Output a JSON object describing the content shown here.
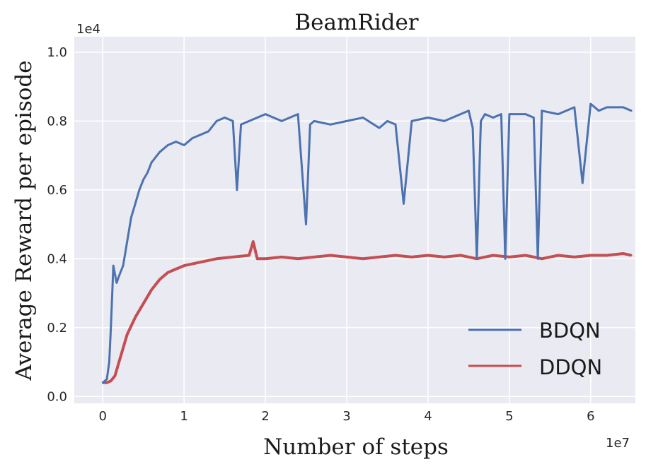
{
  "chart_data": {
    "type": "line",
    "title": "BeamRider",
    "xlabel": "Number of steps",
    "ylabel": "Average Reward per episode",
    "x_offset_label": "1e7",
    "y_offset_label": "1e4",
    "xlim": [
      -0.35,
      6.55
    ],
    "ylim": [
      -0.02,
      1.045
    ],
    "x_ticks": [
      0,
      1,
      2,
      3,
      4,
      5,
      6
    ],
    "x_tick_labels": [
      "0",
      "1",
      "2",
      "3",
      "4",
      "5",
      "6"
    ],
    "y_ticks": [
      0.0,
      0.2,
      0.4,
      0.6,
      0.8,
      1.0
    ],
    "y_tick_labels": [
      "0.0",
      "0.2",
      "0.4",
      "0.6",
      "0.8",
      "1.0"
    ],
    "grid": true,
    "legend_position": "lower-right",
    "background_color": "#eaeaf2",
    "series": [
      {
        "name": "BDQN",
        "color": "#4c72b0",
        "x": [
          0.0,
          0.05,
          0.08,
          0.1,
          0.13,
          0.17,
          0.2,
          0.25,
          0.3,
          0.35,
          0.4,
          0.45,
          0.5,
          0.55,
          0.6,
          0.7,
          0.8,
          0.9,
          1.0,
          1.1,
          1.2,
          1.3,
          1.4,
          1.5,
          1.6,
          1.65,
          1.7,
          1.8,
          1.9,
          2.0,
          2.2,
          2.4,
          2.5,
          2.55,
          2.6,
          2.8,
          3.0,
          3.2,
          3.4,
          3.5,
          3.6,
          3.7,
          3.8,
          4.0,
          4.2,
          4.4,
          4.5,
          4.55,
          4.6,
          4.65,
          4.7,
          4.8,
          4.9,
          4.95,
          5.0,
          5.2,
          5.3,
          5.35,
          5.4,
          5.6,
          5.8,
          5.9,
          6.0,
          6.1,
          6.2,
          6.3,
          6.4,
          6.5
        ],
        "y": [
          0.04,
          0.05,
          0.1,
          0.2,
          0.38,
          0.33,
          0.35,
          0.38,
          0.45,
          0.52,
          0.56,
          0.6,
          0.63,
          0.65,
          0.68,
          0.71,
          0.73,
          0.74,
          0.73,
          0.75,
          0.76,
          0.77,
          0.8,
          0.81,
          0.8,
          0.6,
          0.79,
          0.8,
          0.81,
          0.82,
          0.8,
          0.82,
          0.5,
          0.79,
          0.8,
          0.79,
          0.8,
          0.81,
          0.78,
          0.8,
          0.79,
          0.56,
          0.8,
          0.81,
          0.8,
          0.82,
          0.83,
          0.78,
          0.4,
          0.8,
          0.82,
          0.81,
          0.82,
          0.4,
          0.82,
          0.82,
          0.81,
          0.4,
          0.83,
          0.82,
          0.84,
          0.62,
          0.85,
          0.83,
          0.84,
          0.84,
          0.84,
          0.83
        ]
      },
      {
        "name": "DDQN",
        "color": "#c44e52",
        "x": [
          0.0,
          0.05,
          0.1,
          0.15,
          0.2,
          0.3,
          0.4,
          0.5,
          0.6,
          0.7,
          0.8,
          0.9,
          1.0,
          1.2,
          1.4,
          1.6,
          1.8,
          1.85,
          1.9,
          2.0,
          2.2,
          2.4,
          2.6,
          2.8,
          3.0,
          3.2,
          3.4,
          3.6,
          3.8,
          4.0,
          4.2,
          4.4,
          4.6,
          4.8,
          5.0,
          5.2,
          5.4,
          5.6,
          5.8,
          6.0,
          6.2,
          6.4,
          6.5
        ],
        "y": [
          0.04,
          0.04,
          0.045,
          0.06,
          0.1,
          0.18,
          0.23,
          0.27,
          0.31,
          0.34,
          0.36,
          0.37,
          0.38,
          0.39,
          0.4,
          0.405,
          0.41,
          0.45,
          0.4,
          0.4,
          0.405,
          0.4,
          0.405,
          0.41,
          0.405,
          0.4,
          0.405,
          0.41,
          0.405,
          0.41,
          0.405,
          0.41,
          0.4,
          0.41,
          0.405,
          0.41,
          0.4,
          0.41,
          0.405,
          0.41,
          0.41,
          0.415,
          0.41
        ]
      }
    ]
  }
}
